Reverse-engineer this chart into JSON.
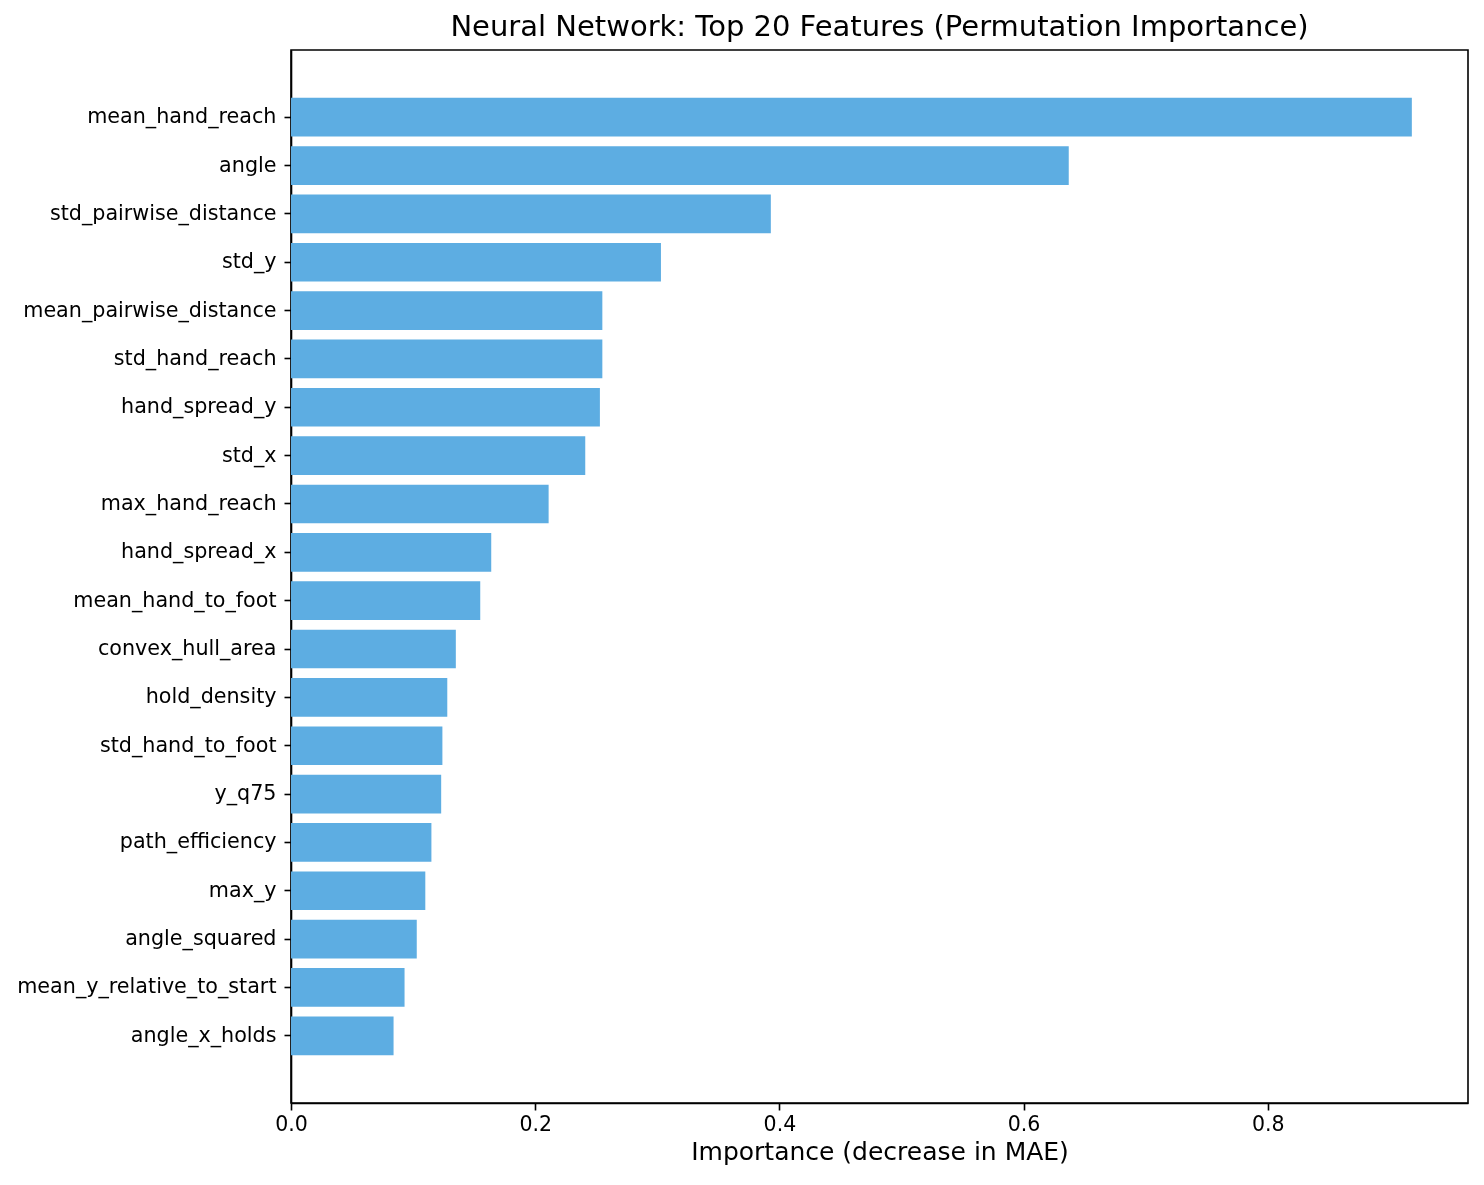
{
  "chart_data": {
    "type": "bar",
    "orientation": "horizontal",
    "title": "Neural Network: Top 20 Features (Permutation Importance)",
    "xlabel": "Importance (decrease in MAE)",
    "categories": [
      "mean_hand_reach",
      "angle",
      "std_pairwise_distance",
      "std_y",
      "mean_pairwise_distance",
      "std_hand_reach",
      "hand_spread_y",
      "std_x",
      "max_hand_reach",
      "hand_spread_x",
      "mean_hand_to_foot",
      "convex_hull_area",
      "hold_density",
      "std_hand_to_foot",
      "y_q75",
      "path_efficiency",
      "max_y",
      "angle_squared",
      "mean_y_relative_to_start",
      "angle_x_holds"
    ],
    "values": [
      0.918,
      0.637,
      0.393,
      0.303,
      0.255,
      0.255,
      0.253,
      0.241,
      0.211,
      0.164,
      0.155,
      0.135,
      0.128,
      0.124,
      0.123,
      0.115,
      0.11,
      0.103,
      0.093,
      0.084
    ],
    "color": "#5dade2",
    "xlim": [
      0,
      0.964
    ],
    "xticks": [
      {
        "value": 0,
        "label": "0.0"
      },
      0.2,
      0.4,
      0.6,
      0.8
    ],
    "grid": false
  }
}
